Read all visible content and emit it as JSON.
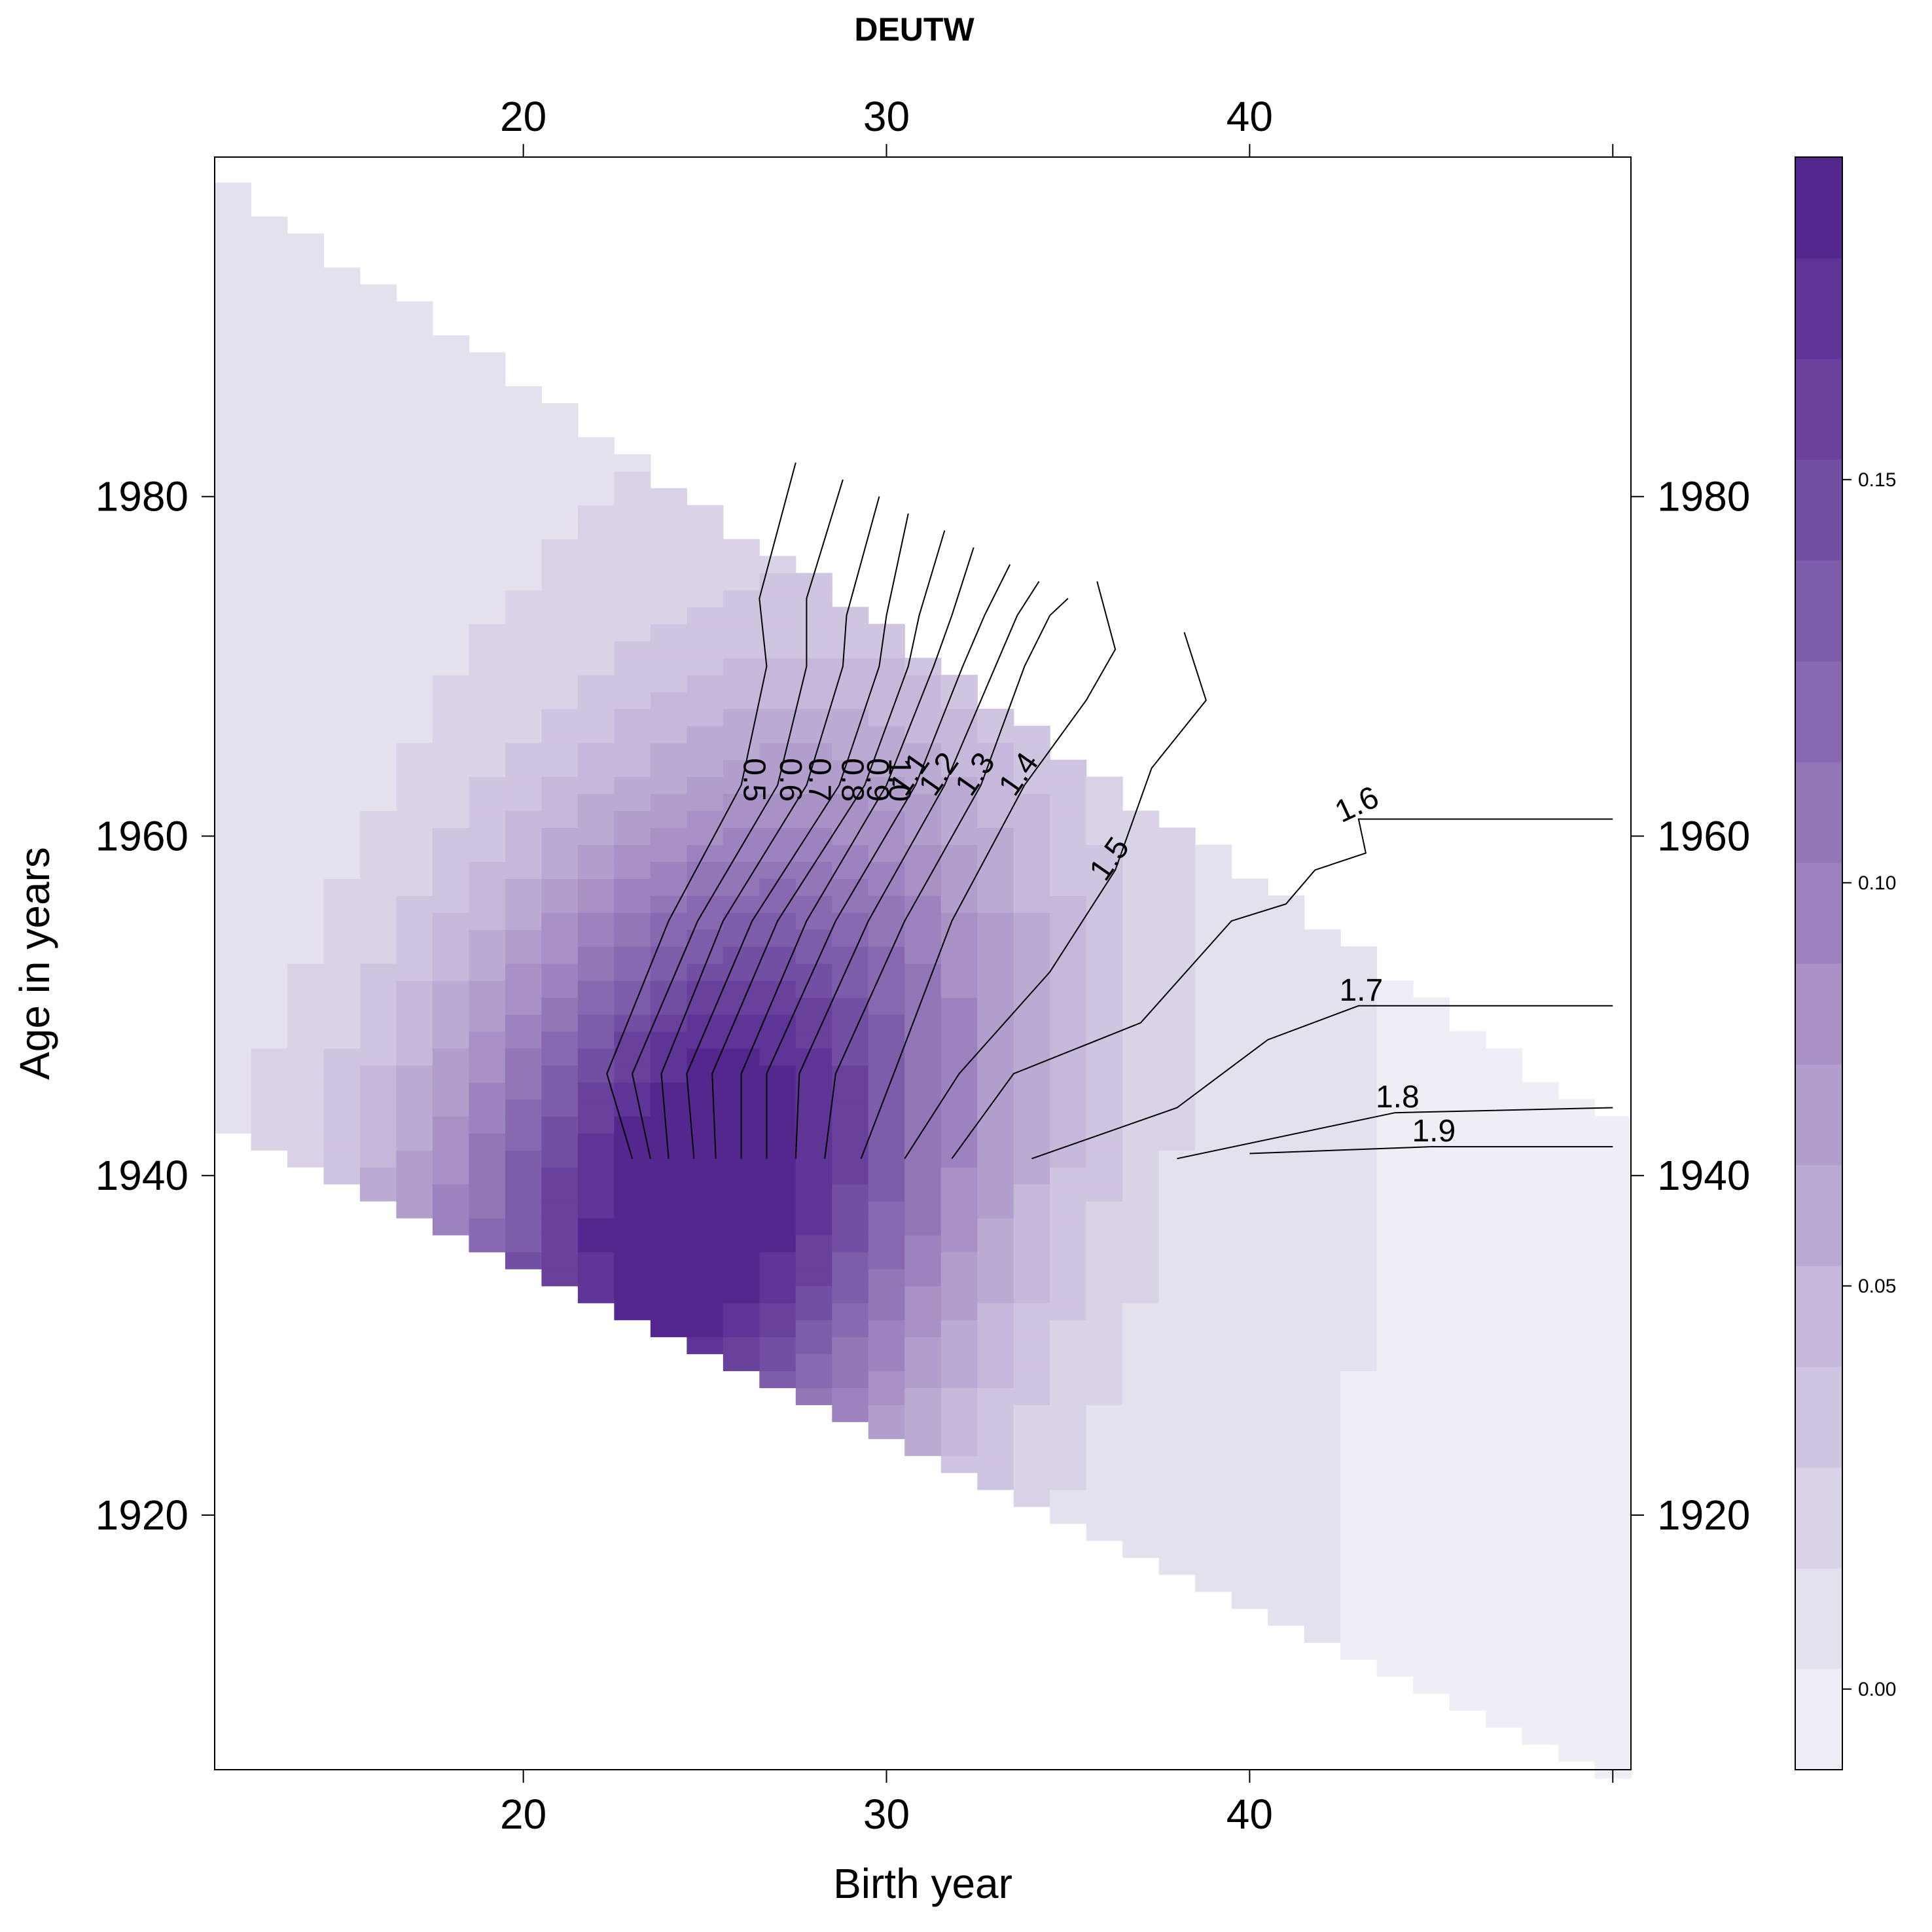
{
  "chart_data": {
    "type": "heatmap",
    "title": "DEUTW",
    "xlabel": "Birth year",
    "ylabel": "Age in years",
    "x_ticks": [
      20,
      30,
      40
    ],
    "y_ticks": [
      1920,
      1940,
      1960,
      1980
    ],
    "colorbar_ticks": [
      "0.00",
      "0.05",
      "0.10",
      "0.15"
    ],
    "colorbar_range": [
      -0.01,
      0.19
    ],
    "colors": {
      "low": "#efedf5",
      "high": "#54278f",
      "contour": "#000000"
    },
    "cells_note_free": true,
    "data_extent": {
      "x": [
        11.5,
        50
      ],
      "y": [
        1905,
        1999
      ]
    },
    "band_edges": {
      "x": [
        11.5,
        50
      ],
      "y_top_at_x": [
        [
          11.5,
          1999
        ],
        [
          50,
          1943
        ]
      ],
      "y_bottom_at_x": [
        [
          11.5,
          1943
        ],
        [
          50,
          1905
        ]
      ]
    },
    "intensity_peak": {
      "x": 25,
      "y": 1939,
      "value": 0.19
    },
    "contours": [
      {
        "level": "0.5",
        "points": [
          [
            23,
            1941
          ],
          [
            22.3,
            1946
          ],
          [
            24,
            1955
          ],
          [
            26,
            1963
          ],
          [
            26.7,
            1970
          ],
          [
            26.5,
            1974
          ],
          [
            27.5,
            1982
          ]
        ]
      },
      {
        "level": "0.6",
        "points": [
          [
            23.5,
            1941
          ],
          [
            23,
            1946
          ],
          [
            24.8,
            1955
          ],
          [
            27,
            1963
          ],
          [
            27.8,
            1970
          ],
          [
            27.8,
            1974
          ],
          [
            28.8,
            1981
          ]
        ]
      },
      {
        "level": "0.7",
        "points": [
          [
            24,
            1941
          ],
          [
            23.8,
            1946
          ],
          [
            25.5,
            1955
          ],
          [
            27.8,
            1963
          ],
          [
            28.8,
            1970
          ],
          [
            28.9,
            1973
          ],
          [
            29.8,
            1980
          ]
        ]
      },
      {
        "level": "0.8",
        "points": [
          [
            24.7,
            1941
          ],
          [
            24.5,
            1946
          ],
          [
            26.3,
            1955
          ],
          [
            28.7,
            1963
          ],
          [
            29.8,
            1970
          ],
          [
            30,
            1973
          ],
          [
            30.6,
            1979
          ]
        ]
      },
      {
        "level": "0.9",
        "points": [
          [
            25.3,
            1941
          ],
          [
            25.2,
            1946
          ],
          [
            27,
            1955
          ],
          [
            29.4,
            1963
          ],
          [
            30.6,
            1970
          ],
          [
            30.9,
            1973
          ],
          [
            31.6,
            1978
          ]
        ]
      },
      {
        "level": "1.0",
        "points": [
          [
            26,
            1941
          ],
          [
            26,
            1946
          ],
          [
            27.8,
            1955
          ],
          [
            30,
            1963
          ],
          [
            31.3,
            1970
          ],
          [
            31.8,
            1973
          ],
          [
            32.4,
            1977
          ]
        ]
      },
      {
        "level": "1.1",
        "points": [
          [
            26.7,
            1941
          ],
          [
            26.7,
            1946
          ],
          [
            28.6,
            1955
          ],
          [
            30.8,
            1963
          ],
          [
            32.1,
            1970
          ],
          [
            32.7,
            1973
          ],
          [
            33.4,
            1976
          ]
        ]
      },
      {
        "level": "1.2",
        "points": [
          [
            27.5,
            1941
          ],
          [
            27.6,
            1946
          ],
          [
            29.5,
            1955
          ],
          [
            31.6,
            1963
          ],
          [
            33,
            1970
          ],
          [
            33.6,
            1973
          ],
          [
            34.2,
            1975
          ]
        ]
      },
      {
        "level": "1.3",
        "points": [
          [
            28.3,
            1941
          ],
          [
            28.6,
            1946
          ],
          [
            30.5,
            1955
          ],
          [
            32.6,
            1963
          ],
          [
            33.8,
            1970
          ],
          [
            34.5,
            1973
          ],
          [
            35,
            1974
          ]
        ]
      },
      {
        "level": "1.4",
        "points": [
          [
            29.3,
            1941
          ],
          [
            30.2,
            1946
          ],
          [
            31.8,
            1955
          ],
          [
            33.8,
            1963
          ],
          [
            35.5,
            1968
          ],
          [
            36.3,
            1971
          ],
          [
            35.8,
            1975
          ]
        ]
      },
      {
        "level": "1.5",
        "points": [
          [
            30.5,
            1941
          ],
          [
            32,
            1946
          ],
          [
            34.5,
            1952
          ],
          [
            36.3,
            1958
          ],
          [
            37.3,
            1964
          ],
          [
            38.8,
            1968
          ],
          [
            38.2,
            1972
          ]
        ]
      },
      {
        "level": "1.6",
        "points": [
          [
            31.8,
            1941
          ],
          [
            33.5,
            1946
          ],
          [
            37,
            1949
          ],
          [
            39.5,
            1955
          ],
          [
            41,
            1956
          ],
          [
            41.8,
            1958
          ],
          [
            43.2,
            1959
          ],
          [
            43,
            1961
          ],
          [
            50,
            1961
          ]
        ]
      },
      {
        "level": "1.7",
        "points": [
          [
            34,
            1941
          ],
          [
            38,
            1944
          ],
          [
            40.5,
            1948
          ],
          [
            43,
            1950
          ],
          [
            50,
            1950
          ]
        ]
      },
      {
        "level": "1.8",
        "points": [
          [
            38,
            1941
          ],
          [
            44,
            1943.7
          ],
          [
            50,
            1944
          ]
        ]
      },
      {
        "level": "1.9",
        "points": [
          [
            40,
            1941.3
          ],
          [
            45,
            1941.7
          ],
          [
            50,
            1941.7
          ]
        ]
      }
    ]
  }
}
